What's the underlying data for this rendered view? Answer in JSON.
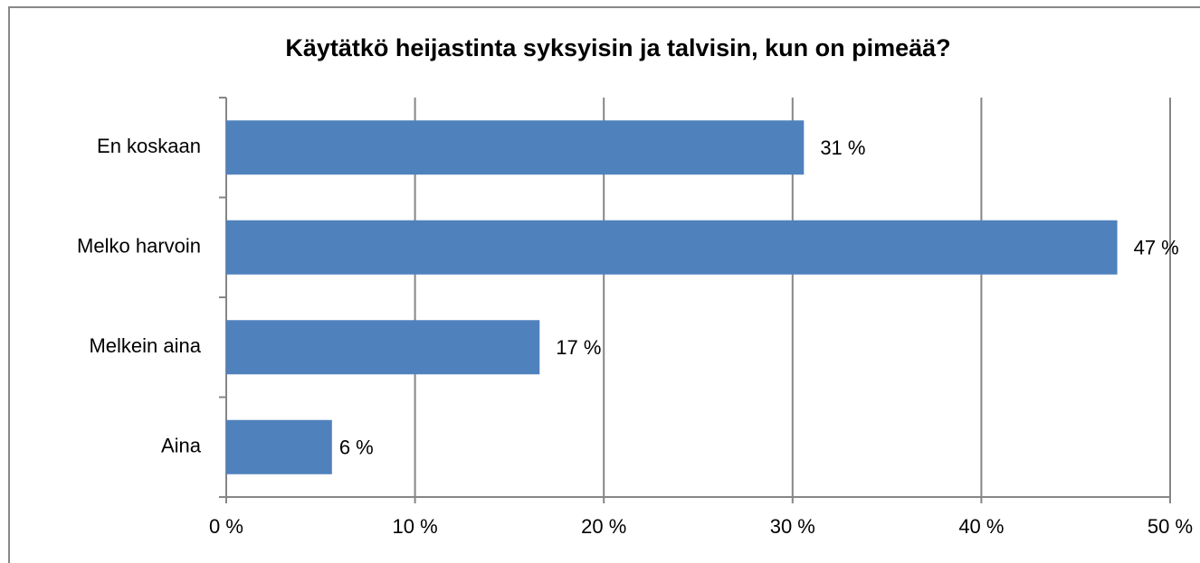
{
  "chart_data": {
    "type": "bar",
    "orientation": "horizontal",
    "title": "Käytätkö heijastinta syksyisin ja talvisin, kun on pimeää?",
    "categories": [
      "En koskaan",
      "Melko harvoin",
      "Melkein aina",
      "Aina"
    ],
    "values": [
      30.6,
      47.2,
      16.6,
      5.6
    ],
    "value_labels": [
      "31 %",
      "47 %",
      "17 %",
      "6 %"
    ],
    "color": "#4f81bd",
    "xlim": [
      0,
      50
    ],
    "xticks": [
      {
        "value": 0,
        "label": "0 %"
      },
      {
        "value": 10,
        "label": "10 %"
      },
      {
        "value": 20,
        "label": "20 %"
      },
      {
        "value": 30,
        "label": "30 %"
      },
      {
        "value": 40,
        "label": "40 %"
      },
      {
        "value": 50,
        "label": "50 %"
      }
    ],
    "grid": true
  }
}
